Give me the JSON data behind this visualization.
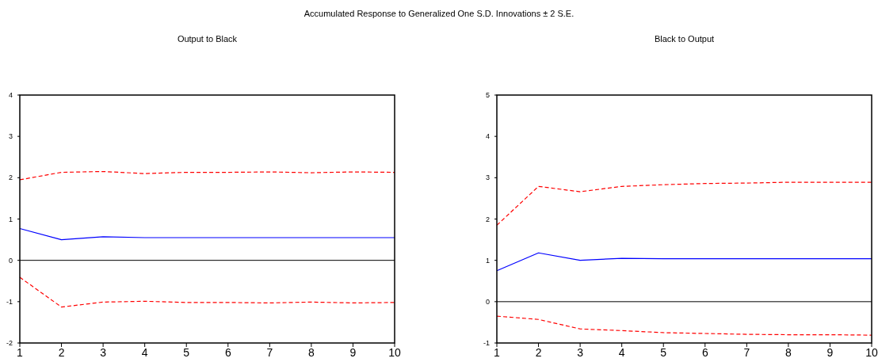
{
  "chart_data": [
    {
      "type": "line",
      "title": "Output to Black",
      "annotations": [
        "Accumulated Response to Generalized One S.D. Innovations ± 2 S.E."
      ],
      "x": [
        1,
        2,
        3,
        4,
        5,
        6,
        7,
        8,
        9,
        10
      ],
      "xlim": [
        1,
        10
      ],
      "xticks": [
        1,
        2,
        3,
        4,
        5,
        6,
        7,
        8,
        9,
        10
      ],
      "ylim": [
        -2,
        4
      ],
      "yticks": [
        -2,
        -1,
        0,
        1,
        2,
        3,
        4
      ],
      "ref_lines": [
        {
          "axis": "y",
          "value": 0,
          "color": "#000000"
        }
      ],
      "series": [
        {
          "color": "#0000ff",
          "line_style": "solid",
          "values": [
            0.77,
            0.5,
            0.57,
            0.55,
            0.55,
            0.55,
            0.55,
            0.55,
            0.55,
            0.55
          ]
        },
        {
          "color": "#ff0000",
          "line_style": "dashed",
          "values": [
            1.95,
            2.13,
            2.15,
            2.1,
            2.13,
            2.13,
            2.14,
            2.12,
            2.14,
            2.13
          ]
        },
        {
          "color": "#ff0000",
          "line_style": "dashed",
          "values": [
            -0.41,
            -1.13,
            -1.01,
            -0.99,
            -1.02,
            -1.02,
            -1.03,
            -1.01,
            -1.03,
            -1.02
          ]
        }
      ]
    },
    {
      "type": "line",
      "title": "Black to Output",
      "x": [
        1,
        2,
        3,
        4,
        5,
        6,
        7,
        8,
        9,
        10
      ],
      "xlim": [
        1,
        10
      ],
      "xticks": [
        1,
        2,
        3,
        4,
        5,
        6,
        7,
        8,
        9,
        10
      ],
      "ylim": [
        -1,
        5
      ],
      "yticks": [
        -1,
        0,
        1,
        2,
        3,
        4,
        5
      ],
      "ref_lines": [
        {
          "axis": "y",
          "value": 0,
          "color": "#000000"
        }
      ],
      "series": [
        {
          "color": "#0000ff",
          "line_style": "solid",
          "values": [
            0.75,
            1.18,
            1.0,
            1.05,
            1.04,
            1.04,
            1.04,
            1.04,
            1.04,
            1.04
          ]
        },
        {
          "color": "#ff0000",
          "line_style": "dashed",
          "values": [
            1.85,
            2.79,
            2.66,
            2.79,
            2.83,
            2.86,
            2.87,
            2.89,
            2.89,
            2.89
          ]
        },
        {
          "color": "#ff0000",
          "line_style": "dashed",
          "values": [
            -0.35,
            -0.43,
            -0.66,
            -0.7,
            -0.75,
            -0.77,
            -0.79,
            -0.8,
            -0.8,
            -0.81
          ]
        }
      ]
    }
  ]
}
